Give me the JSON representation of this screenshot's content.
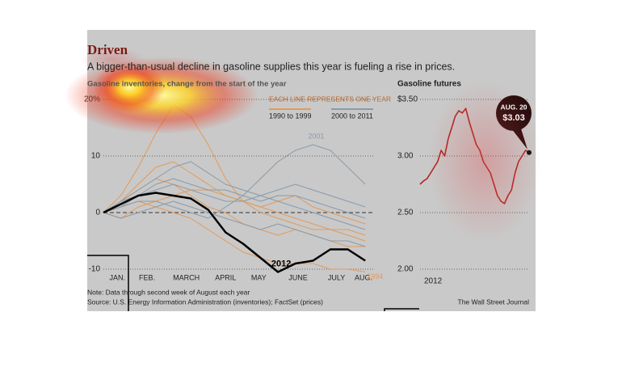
{
  "header": {
    "title": "Driven",
    "subtitle": "A bigger-than-usual decline in gasoline supplies this year is fueling a rise in prices."
  },
  "chart_data": [
    {
      "type": "line",
      "title": "Gasoline inventories, change from the start of the year",
      "legend_title": "EACH LINE REPRESENTS ONE YEAR",
      "x": [
        0,
        2,
        4,
        6,
        8,
        10,
        12,
        14,
        16,
        18,
        20,
        22,
        24,
        26,
        28,
        30
      ],
      "xlim": [
        0,
        31
      ],
      "xticks": [
        {
          "value": 1.6,
          "label": "JAN."
        },
        {
          "value": 5,
          "label": "FEB."
        },
        {
          "value": 9.5,
          "label": "MARCH"
        },
        {
          "value": 14,
          "label": "APRIL"
        },
        {
          "value": 17.8,
          "label": "MAY"
        },
        {
          "value": 22.3,
          "label": "JUNE"
        },
        {
          "value": 26.7,
          "label": "JULY"
        },
        {
          "value": 29.8,
          "label": "AUG."
        }
      ],
      "ylim": [
        -10,
        20
      ],
      "yticks": [
        {
          "value": 20,
          "label": "20%"
        },
        10,
        0,
        -10
      ],
      "grid": true,
      "series": [
        {
          "name": "1990 to 1999",
          "color": "#e39a5a",
          "lines": [
            {
              "values": [
                0,
                3,
                8,
                14,
                19,
                17,
                12,
                6,
                2,
                0,
                -1,
                -2,
                -3,
                -3,
                -4,
                -5
              ]
            },
            {
              "values": [
                0,
                2,
                4,
                6,
                5,
                3,
                1,
                0,
                -2,
                -3,
                -4,
                -3,
                -4,
                -5,
                -6,
                -6
              ]
            },
            {
              "values": [
                0,
                -1,
                1,
                2,
                3,
                4,
                4,
                3,
                2,
                1,
                0,
                -1,
                -2,
                -3,
                -3,
                -4
              ]
            },
            {
              "label": "1994",
              "values": [
                0,
                1,
                2,
                1,
                0,
                -1,
                -3,
                -5,
                -7,
                -8,
                -9,
                -9,
                -9,
                -10,
                -10,
                -10.5
              ]
            },
            {
              "values": [
                0,
                2,
                5,
                8,
                9,
                7,
                5,
                3,
                2,
                1,
                2,
                3,
                1,
                0,
                -1,
                -2
              ]
            }
          ]
        },
        {
          "name": "2000 to 2011",
          "color": "#8a9aa8",
          "lines": [
            {
              "label": "2001",
              "values": [
                0,
                1,
                2,
                2,
                1,
                0,
                -1,
                1,
                3,
                6,
                9,
                11,
                12,
                11,
                8,
                5
              ]
            },
            {
              "values": [
                0,
                2,
                4,
                6,
                8,
                9,
                7,
                5,
                4,
                3,
                2,
                1,
                0,
                -1,
                -2,
                -3
              ]
            },
            {
              "values": [
                0,
                1,
                3,
                4,
                5,
                4,
                3,
                2,
                2,
                3,
                4,
                5,
                4,
                3,
                2,
                1
              ]
            },
            {
              "values": [
                0,
                -1,
                0,
                1,
                2,
                1,
                0,
                -1,
                -2,
                -3,
                -2,
                -3,
                -4,
                -5,
                -5,
                -6
              ]
            },
            {
              "values": [
                0,
                2,
                3,
                5,
                6,
                5,
                4,
                4,
                3,
                2,
                3,
                3,
                2,
                1,
                0,
                -1
              ]
            }
          ]
        },
        {
          "name": "2012",
          "color": "#000000",
          "values": [
            0,
            1.5,
            3,
            3.5,
            3,
            2.5,
            0.5,
            -3.5,
            -5.5,
            -8,
            -10.5,
            -9,
            -8.5,
            -6.5,
            -6.5,
            -8.5
          ]
        }
      ]
    },
    {
      "type": "line",
      "title": "Gasoline futures",
      "x_label": "2012",
      "color": "#b22222",
      "values": [
        2.75,
        2.78,
        2.8,
        2.85,
        2.9,
        2.95,
        3.05,
        3.0,
        3.15,
        3.25,
        3.35,
        3.4,
        3.38,
        3.42,
        3.3,
        3.2,
        3.1,
        3.05,
        2.95,
        2.9,
        2.85,
        2.75,
        2.65,
        2.6,
        2.58,
        2.65,
        2.7,
        2.85,
        2.95,
        3.0,
        3.05,
        3.03
      ],
      "xlim": [
        0,
        31
      ],
      "ylim": [
        2,
        3.5
      ],
      "yticks": [
        {
          "value": 3.5,
          "label": "$3.50"
        },
        {
          "value": 3,
          "label": "3.00"
        },
        {
          "value": 2.5,
          "label": "2.50"
        },
        {
          "value": 2,
          "label": "2.00"
        }
      ],
      "grid": true,
      "annotation": {
        "date": "AUG. 20",
        "label": "$3.03"
      }
    }
  ],
  "footer": {
    "note": "Note: Data through second week of August each year",
    "source": "Source: U.S. Energy Information Administration (inventories); FactSet (prices)",
    "credit": "The Wall Street Journal"
  }
}
